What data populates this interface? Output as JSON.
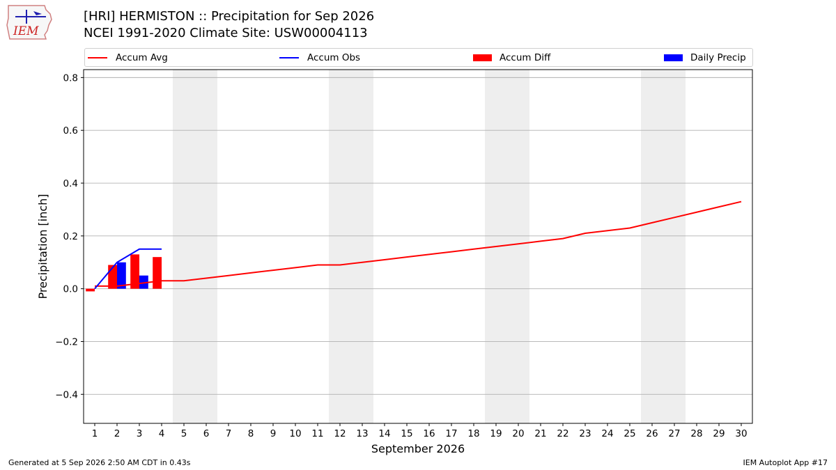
{
  "title": "[HRI] HERMISTON :: Precipitation for Sep 2026",
  "subtitle": "NCEI 1991-2020 Climate Site: USW00004113",
  "footer_left": "Generated at 5 Sep 2026 2:50 AM CDT in 0.43s",
  "footer_right": "IEM Autoplot App #17",
  "logo_text": "IEM",
  "colors": {
    "avg": "#ff0000",
    "obs": "#0000ff",
    "diff": "#ff0000",
    "daily": "#0000ff",
    "weekend": "#eeeeee"
  },
  "chart_data": {
    "type": "bar",
    "xlabel": "September 2026",
    "ylabel": "Precipitation [inch]",
    "xlim": [
      0.5,
      30.5
    ],
    "ylim": [
      -0.51,
      0.83
    ],
    "yticks": [
      -0.4,
      -0.2,
      0.0,
      0.2,
      0.4,
      0.6,
      0.8
    ],
    "ytick_labels": [
      "−0.4",
      "−0.2",
      "0.0",
      "0.2",
      "0.4",
      "0.6",
      "0.8"
    ],
    "xticks": [
      1,
      2,
      3,
      4,
      5,
      6,
      7,
      8,
      9,
      10,
      11,
      12,
      13,
      14,
      15,
      16,
      17,
      18,
      19,
      20,
      21,
      22,
      23,
      24,
      25,
      26,
      27,
      28,
      29,
      30
    ],
    "grid": "y",
    "legend_position": "top",
    "weekend_spans": [
      [
        4.5,
        6.5
      ],
      [
        11.5,
        13.5
      ],
      [
        18.5,
        20.5
      ],
      [
        25.5,
        27.5
      ]
    ],
    "series": [
      {
        "name": "Accum Avg",
        "kind": "line",
        "x": [
          1,
          2,
          3,
          4,
          5,
          6,
          7,
          8,
          9,
          10,
          11,
          12,
          13,
          14,
          15,
          16,
          17,
          18,
          19,
          20,
          21,
          22,
          23,
          24,
          25,
          26,
          27,
          28,
          29,
          30
        ],
        "values": [
          0.01,
          0.01,
          0.02,
          0.03,
          0.03,
          0.04,
          0.05,
          0.06,
          0.07,
          0.08,
          0.09,
          0.09,
          0.1,
          0.11,
          0.12,
          0.13,
          0.14,
          0.15,
          0.16,
          0.17,
          0.18,
          0.19,
          0.21,
          0.22,
          0.23,
          0.25,
          0.27,
          0.29,
          0.31,
          0.33
        ]
      },
      {
        "name": "Accum Obs",
        "kind": "line",
        "x": [
          1,
          2,
          3,
          4
        ],
        "values": [
          0.0,
          0.1,
          0.15,
          0.15
        ]
      },
      {
        "name": "Accum Diff",
        "kind": "bar",
        "x": [
          1,
          2,
          3,
          4
        ],
        "values": [
          -0.01,
          0.09,
          0.13,
          0.12
        ]
      },
      {
        "name": "Daily Precip",
        "kind": "bar",
        "x": [
          1,
          2,
          3,
          4
        ],
        "values": [
          0.0,
          0.1,
          0.05,
          0.0
        ]
      }
    ]
  }
}
